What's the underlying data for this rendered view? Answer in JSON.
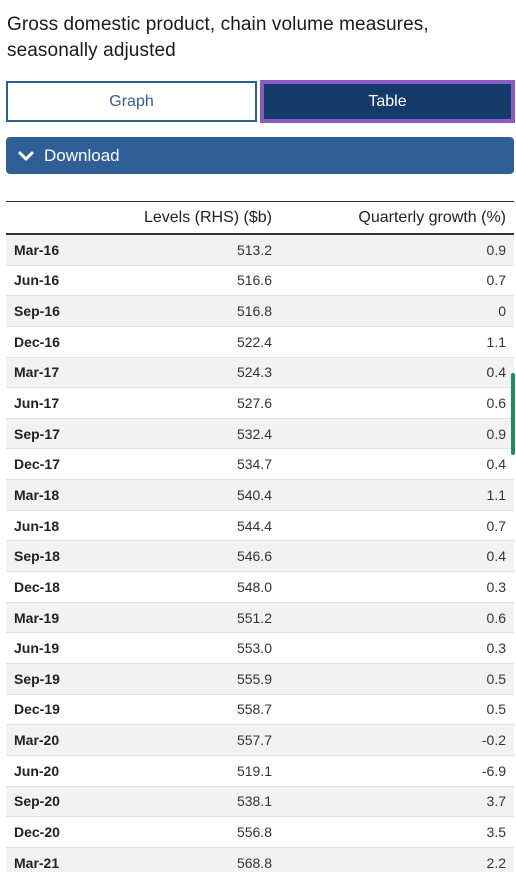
{
  "title": "Gross domestic product, chain volume measures, seasonally adjusted",
  "tabs": {
    "graph": "Graph",
    "table": "Table",
    "active": "Table"
  },
  "download": {
    "label": "Download",
    "icon": "chevron-down-icon"
  },
  "table": {
    "headers": {
      "date": "",
      "levels": "Levels (RHS) ($b)",
      "growth": "Quarterly growth (%)"
    },
    "rows": [
      {
        "date": "Mar-16",
        "levels": "513.2",
        "growth": "0.9"
      },
      {
        "date": "Jun-16",
        "levels": "516.6",
        "growth": "0.7"
      },
      {
        "date": "Sep-16",
        "levels": "516.8",
        "growth": "0"
      },
      {
        "date": "Dec-16",
        "levels": "522.4",
        "growth": "1.1"
      },
      {
        "date": "Mar-17",
        "levels": "524.3",
        "growth": "0.4"
      },
      {
        "date": "Jun-17",
        "levels": "527.6",
        "growth": "0.6"
      },
      {
        "date": "Sep-17",
        "levels": "532.4",
        "growth": "0.9"
      },
      {
        "date": "Dec-17",
        "levels": "534.7",
        "growth": "0.4"
      },
      {
        "date": "Mar-18",
        "levels": "540.4",
        "growth": "1.1"
      },
      {
        "date": "Jun-18",
        "levels": "544.4",
        "growth": "0.7"
      },
      {
        "date": "Sep-18",
        "levels": "546.6",
        "growth": "0.4"
      },
      {
        "date": "Dec-18",
        "levels": "548.0",
        "growth": "0.3"
      },
      {
        "date": "Mar-19",
        "levels": "551.2",
        "growth": "0.6"
      },
      {
        "date": "Jun-19",
        "levels": "553.0",
        "growth": "0.3"
      },
      {
        "date": "Sep-19",
        "levels": "555.9",
        "growth": "0.5"
      },
      {
        "date": "Dec-19",
        "levels": "558.7",
        "growth": "0.5"
      },
      {
        "date": "Mar-20",
        "levels": "557.7",
        "growth": "-0.2"
      },
      {
        "date": "Jun-20",
        "levels": "519.1",
        "growth": "-6.9"
      },
      {
        "date": "Sep-20",
        "levels": "538.1",
        "growth": "3.7"
      },
      {
        "date": "Dec-20",
        "levels": "556.8",
        "growth": "3.5"
      },
      {
        "date": "Mar-21",
        "levels": "568.8",
        "growth": "2.2"
      }
    ]
  },
  "colors": {
    "active_tab": "#153b6b",
    "download_bg": "#2f5f96",
    "focus_outline": "#8a5cc2",
    "scroll_indicator": "#1f8a5a"
  }
}
